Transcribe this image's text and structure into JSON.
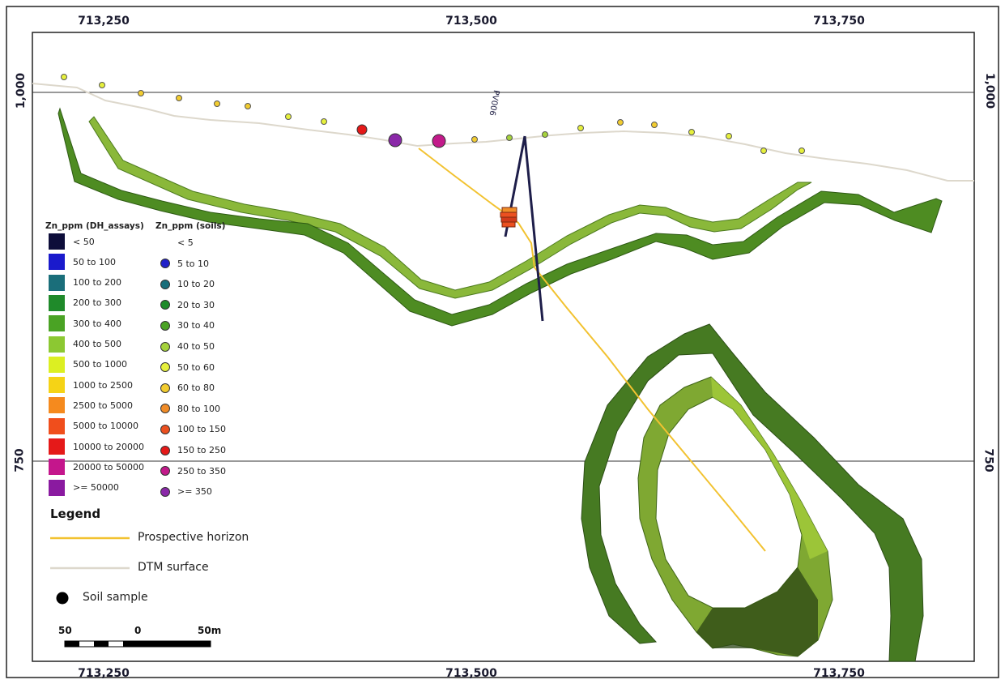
{
  "map": {
    "easting_labels": [
      "713,250",
      "713,500",
      "713,750"
    ],
    "elevation_labels": [
      "1,000",
      "750"
    ],
    "drillhole_id": "PV006"
  },
  "legend": {
    "dh_header": "Zn_ppm (DH_assays)",
    "soil_header": "Zn_ppm (soils)",
    "dh_classes": [
      {
        "label": "< 50",
        "color": "#0d0d3a"
      },
      {
        "label": "50 to 100",
        "color": "#1a1acc"
      },
      {
        "label": "100 to 200",
        "color": "#1a6e7a"
      },
      {
        "label": "200 to 300",
        "color": "#1f8a2a"
      },
      {
        "label": "300 to 400",
        "color": "#4aa324"
      },
      {
        "label": "400 to 500",
        "color": "#8cc832"
      },
      {
        "label": "500 to 1000",
        "color": "#dcef22"
      },
      {
        "label": "1000 to 2500",
        "color": "#f5d316"
      },
      {
        "label": "2500 to 5000",
        "color": "#f58a1e"
      },
      {
        "label": "5000 to 10000",
        "color": "#f04e1c"
      },
      {
        "label": "10000 to 20000",
        "color": "#e51919"
      },
      {
        "label": "20000 to 50000",
        "color": "#c4168c"
      },
      {
        "label": ">= 50000",
        "color": "#8a1aa0"
      }
    ],
    "soil_classes": [
      {
        "label": "< 5",
        "color": ""
      },
      {
        "label": "5 to 10",
        "color": "#2020c8"
      },
      {
        "label": "10 to 20",
        "color": "#1a6e7a"
      },
      {
        "label": "20 to 30",
        "color": "#1f8a2a"
      },
      {
        "label": "30 to 40",
        "color": "#4aa324"
      },
      {
        "label": "40 to 50",
        "color": "#a5d23c"
      },
      {
        "label": "50 to 60",
        "color": "#e6f03c"
      },
      {
        "label": "60 to 80",
        "color": "#f2cc30"
      },
      {
        "label": "80 to 100",
        "color": "#f08c28"
      },
      {
        "label": "100 to 150",
        "color": "#ec5020"
      },
      {
        "label": "150 to 250",
        "color": "#e51919"
      },
      {
        "label": "250 to 350",
        "color": "#c21a8a"
      },
      {
        "label": ">= 350",
        "color": "#8a28a8"
      }
    ],
    "title": "Legend",
    "prospective_label": "Prospective horizon",
    "prospective_color": "#f2c230",
    "dtm_label": "DTM surface",
    "dtm_color": "#ddd8cc",
    "soil_sample_label": "Soil sample"
  },
  "scale_bar": {
    "left": "50",
    "mid": "0",
    "right": "50m"
  }
}
